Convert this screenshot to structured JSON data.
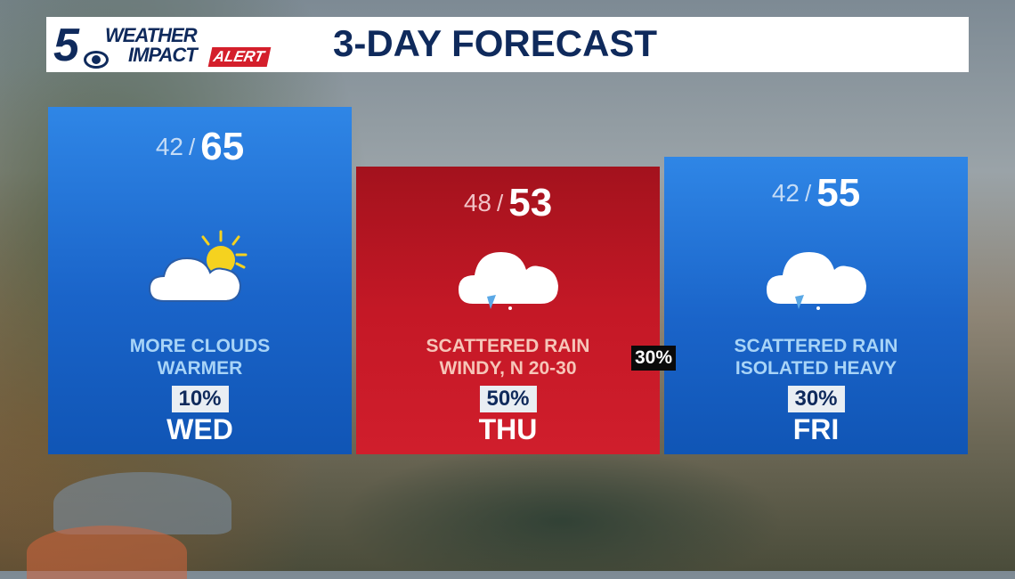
{
  "header": {
    "logo_number": "5",
    "logo_line1": "WEATHER",
    "logo_line2": "IMPACT",
    "logo_alert": "ALERT",
    "title": "3-DAY FORECAST"
  },
  "days": [
    {
      "low": "42",
      "high": "65",
      "icon": "partly-sunny-icon",
      "desc1": "MORE CLOUDS",
      "desc2": "WARMER",
      "pop": "10%",
      "day": "WED"
    },
    {
      "low": "48",
      "high": "53",
      "icon": "rain-cloud-icon",
      "desc1": "SCATTERED RAIN",
      "desc2": "WINDY, N 20-30",
      "pop": "50%",
      "day": "THU"
    },
    {
      "low": "42",
      "high": "55",
      "icon": "rain-cloud-icon",
      "desc1": "SCATTERED RAIN",
      "desc2": "ISOLATED HEAVY",
      "pop": "30%",
      "day": "FRI"
    }
  ],
  "side_badge": "30%",
  "colors": {
    "blue": "#1a64c9",
    "red": "#c41826",
    "navy": "#0f2a5c",
    "alert_red": "#d41f2b"
  }
}
